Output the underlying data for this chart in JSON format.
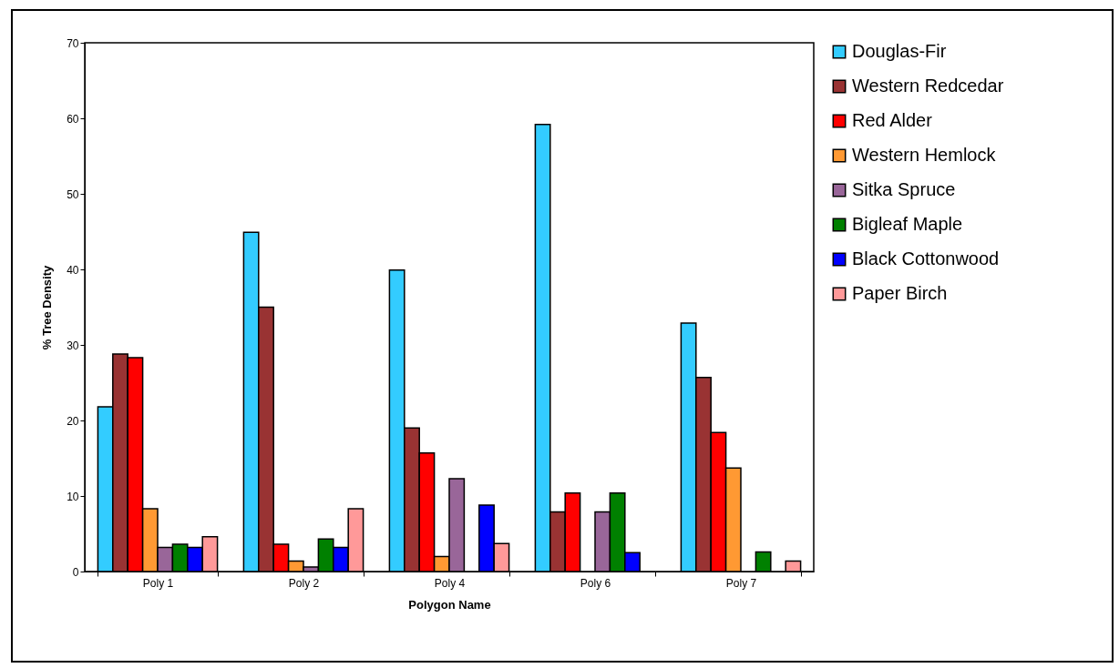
{
  "chart_data": {
    "type": "bar",
    "xlabel": "Polygon Name",
    "ylabel": "% Tree Density",
    "categories": [
      "Poly 1",
      "Poly 2",
      "Poly 4",
      "Poly 6",
      "Poly 7"
    ],
    "series": [
      {
        "name": "Douglas-Fir",
        "color": "#33ccff",
        "values": [
          21.8,
          44.9,
          39.9,
          59.2,
          32.9
        ]
      },
      {
        "name": "Western Redcedar",
        "color": "#993333",
        "values": [
          28.8,
          35.0,
          19.0,
          7.9,
          25.7
        ]
      },
      {
        "name": "Red Alder",
        "color": "#ff0000",
        "values": [
          28.3,
          3.6,
          15.7,
          10.4,
          18.4
        ]
      },
      {
        "name": "Western Hemlock",
        "color": "#ff9933",
        "values": [
          8.3,
          1.4,
          2.0,
          null,
          13.7
        ]
      },
      {
        "name": "Sitka Spruce",
        "color": "#996699",
        "values": [
          3.2,
          0.6,
          12.3,
          7.9,
          null
        ]
      },
      {
        "name": "Bigleaf Maple",
        "color": "#008000",
        "values": [
          3.6,
          4.3,
          null,
          10.4,
          2.6
        ]
      },
      {
        "name": "Black Cottonwood",
        "color": "#0000ff",
        "values": [
          3.2,
          3.2,
          8.8,
          2.5,
          null
        ]
      },
      {
        "name": "Paper Birch",
        "color": "#ff9999",
        "values": [
          4.6,
          8.3,
          3.7,
          null,
          1.4
        ]
      }
    ],
    "ylim": [
      0,
      70
    ],
    "yticks": [
      0,
      10,
      20,
      30,
      40,
      50,
      60,
      70
    ],
    "grid": false,
    "legend": "right"
  }
}
